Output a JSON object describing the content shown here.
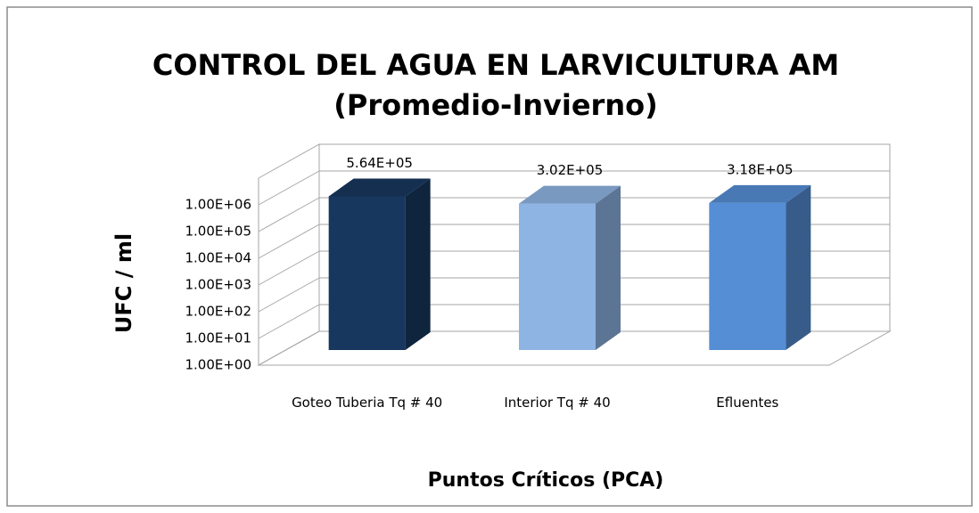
{
  "chart_data": {
    "type": "bar3d",
    "title": "CONTROL DEL AGUA EN LARVICULTURA AM",
    "subtitle": "(Promedio-Invierno)",
    "y_label": "UFC / ml",
    "x_label": "Puntos Críticos (PCA)",
    "categories": [
      "Goteo Tuberia Tq # 40",
      "Interior Tq # 40",
      "Efluentes"
    ],
    "values": [
      564000,
      302000,
      318000
    ],
    "value_labels": [
      "5.64E+05",
      "3.02E+05",
      "3.18E+05"
    ],
    "colors": [
      "#17375e",
      "#8eb4e3",
      "#558ed5"
    ],
    "yscale": "log",
    "ylim": [
      1,
      10000000
    ],
    "yticks": [
      {
        "value": 1,
        "label": "1.00E+00"
      },
      {
        "value": 10,
        "label": "1.00E+01"
      },
      {
        "value": 100,
        "label": "1.00E+02"
      },
      {
        "value": 1000,
        "label": "1.00E+03"
      },
      {
        "value": 10000,
        "label": "1.00E+04"
      },
      {
        "value": 100000,
        "label": "1.00E+05"
      },
      {
        "value": 1000000,
        "label": "1.00E+06"
      }
    ],
    "grid": true
  }
}
